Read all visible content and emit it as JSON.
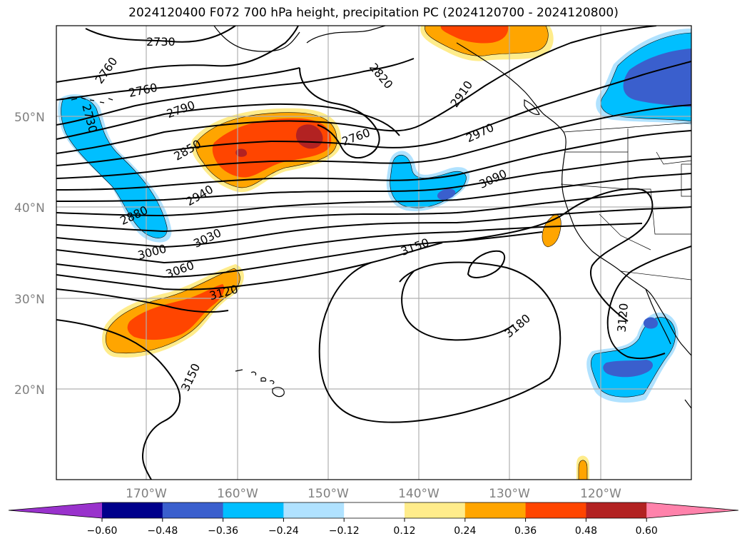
{
  "title": "2024120400 F072 700 hPa height, precipitation PC (2024120700 - 2024120800)",
  "lat_labels": [
    "50°N",
    "40°N",
    "30°N",
    "20°N"
  ],
  "lon_labels": [
    "170°W",
    "160°W",
    "150°W",
    "140°W",
    "130°W",
    "120°W"
  ],
  "contour_labels": [
    "2730",
    "2760",
    "2760",
    "2730",
    "2790",
    "2820",
    "2910",
    "2850",
    "2760",
    "2970",
    "2940",
    "3090",
    "2880",
    "3030",
    "3000",
    "3150",
    "3060",
    "3120",
    "3180",
    "3120",
    "3150"
  ],
  "colorbar": {
    "ticks": [
      "−0.60",
      "−0.48",
      "−0.36",
      "−0.24",
      "−0.12",
      "0.12",
      "0.24",
      "0.36",
      "0.48",
      "0.60"
    ],
    "colors": [
      "#9932CC",
      "#00008B",
      "#3A5FCD",
      "#00BFFF",
      "#B0E2FF",
      "#FFFFFF",
      "#FFEC8B",
      "#FFA500",
      "#FF4500",
      "#B22222",
      "#FF82AB"
    ]
  }
}
